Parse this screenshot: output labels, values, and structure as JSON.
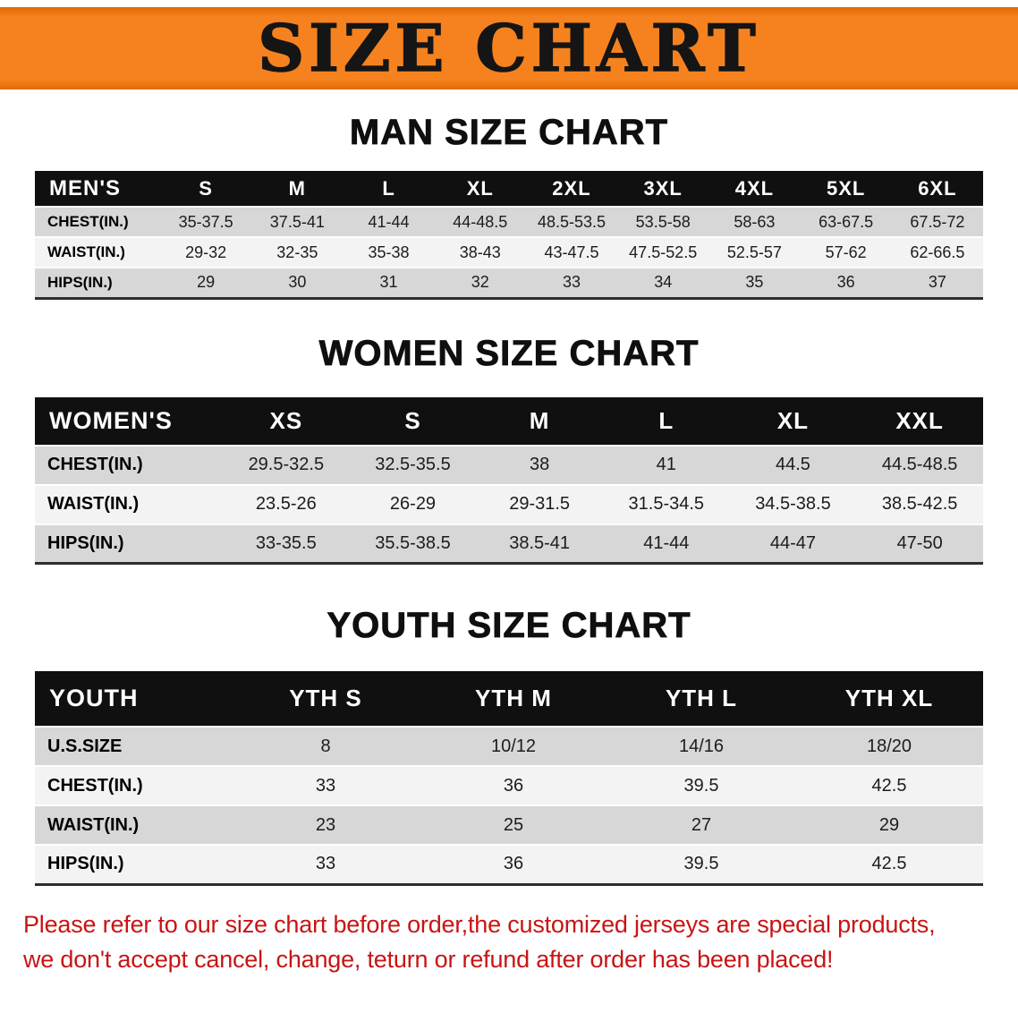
{
  "banner": {
    "title": "SIZE CHART"
  },
  "colors": {
    "banner_orange": "#f5821f",
    "banner_orange_dark": "#e26a00",
    "header_black": "#101010",
    "row_gray": "#d7d7d7",
    "row_light": "#f3f3f3",
    "disclaimer_red": "#c81414"
  },
  "men_chart": {
    "heading": "MAN SIZE CHART",
    "header": [
      "MEN'S",
      "S",
      "M",
      "L",
      "XL",
      "2XL",
      "3XL",
      "4XL",
      "5XL",
      "6XL"
    ],
    "rows": [
      [
        "CHEST(IN.)",
        "35-37.5",
        "37.5-41",
        "41-44",
        "44-48.5",
        "48.5-53.5",
        "53.5-58",
        "58-63",
        "63-67.5",
        "67.5-72"
      ],
      [
        "WAIST(IN.)",
        "29-32",
        "32-35",
        "35-38",
        "38-43",
        "43-47.5",
        "47.5-52.5",
        "52.5-57",
        "57-62",
        "62-66.5"
      ],
      [
        "HIPS(IN.)",
        "29",
        "30",
        "31",
        "32",
        "33",
        "34",
        "35",
        "36",
        "37"
      ]
    ]
  },
  "women_chart": {
    "heading": "WOMEN SIZE CHART",
    "header": [
      "WOMEN'S",
      "XS",
      "S",
      "M",
      "L",
      "XL",
      "XXL"
    ],
    "rows": [
      [
        "CHEST(IN.)",
        "29.5-32.5",
        "32.5-35.5",
        "38",
        "41",
        "44.5",
        "44.5-48.5"
      ],
      [
        "WAIST(IN.)",
        "23.5-26",
        "26-29",
        "29-31.5",
        "31.5-34.5",
        "34.5-38.5",
        "38.5-42.5"
      ],
      [
        "HIPS(IN.)",
        "33-35.5",
        "35.5-38.5",
        "38.5-41",
        "41-44",
        "44-47",
        "47-50"
      ]
    ]
  },
  "youth_chart": {
    "heading": "YOUTH SIZE CHART",
    "header": [
      "YOUTH",
      "YTH S",
      "YTH M",
      "YTH L",
      "YTH XL"
    ],
    "rows": [
      [
        "U.S.SIZE",
        "8",
        "10/12",
        "14/16",
        "18/20"
      ],
      [
        "CHEST(IN.)",
        "33",
        "36",
        "39.5",
        "42.5"
      ],
      [
        "WAIST(IN.)",
        "23",
        "25",
        "27",
        "29"
      ],
      [
        "HIPS(IN.)",
        "33",
        "36",
        "39.5",
        "42.5"
      ]
    ]
  },
  "disclaimer": {
    "line1": "Please refer to our size chart before order,the customized jerseys are special products,",
    "line2": "we don't accept cancel, change, teturn or refund after order has been placed!"
  }
}
